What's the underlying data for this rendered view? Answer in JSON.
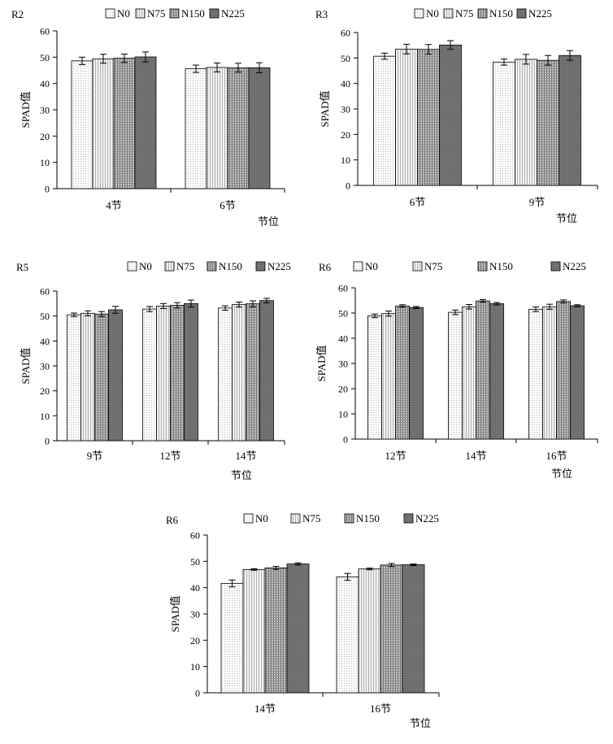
{
  "chart_data": [
    {
      "type": "bar",
      "panel_label": "R2",
      "ylabel": "SPAD值",
      "xlabel": "节位",
      "ylim": [
        0,
        60
      ],
      "yticks": [
        0,
        10,
        20,
        30,
        40,
        50,
        60
      ],
      "categories": [
        "4节",
        "6节"
      ],
      "series": [
        {
          "name": "N0",
          "values": [
            48.6,
            45.6
          ],
          "errors": [
            1.4,
            1.4
          ]
        },
        {
          "name": "N75",
          "values": [
            49.4,
            46.1
          ],
          "errors": [
            1.7,
            1.7
          ]
        },
        {
          "name": "N150",
          "values": [
            49.6,
            46.0
          ],
          "errors": [
            1.6,
            1.7
          ]
        },
        {
          "name": "N225",
          "values": [
            50.1,
            46.0
          ],
          "errors": [
            1.9,
            1.9
          ]
        }
      ],
      "legend": "top"
    },
    {
      "type": "bar",
      "panel_label": "R3",
      "ylabel": "SPAD值",
      "xlabel": "节位",
      "ylim": [
        0,
        60
      ],
      "yticks": [
        0,
        10,
        20,
        30,
        40,
        50,
        60
      ],
      "categories": [
        "6节",
        "9节"
      ],
      "series": [
        {
          "name": "N0",
          "values": [
            50.7,
            48.4
          ],
          "errors": [
            1.2,
            1.2
          ]
        },
        {
          "name": "N75",
          "values": [
            53.5,
            49.5
          ],
          "errors": [
            1.9,
            1.9
          ]
        },
        {
          "name": "N150",
          "values": [
            53.4,
            49.1
          ],
          "errors": [
            1.9,
            1.9
          ]
        },
        {
          "name": "N225",
          "values": [
            55.1,
            51.0
          ],
          "errors": [
            1.7,
            1.9
          ]
        }
      ],
      "legend": "top"
    },
    {
      "type": "bar",
      "panel_label": "R5",
      "ylabel": "SPAD值",
      "xlabel": "节位",
      "ylim": [
        0,
        60
      ],
      "yticks": [
        0,
        10,
        20,
        30,
        40,
        50,
        60
      ],
      "categories": [
        "9节",
        "12节",
        "14节"
      ],
      "series": [
        {
          "name": "N0",
          "values": [
            50.5,
            52.8,
            53.2
          ],
          "errors": [
            0.7,
            1.0,
            0.9
          ]
        },
        {
          "name": "N75",
          "values": [
            51.1,
            54.0,
            54.6
          ],
          "errors": [
            1.0,
            1.0,
            1.0
          ]
        },
        {
          "name": "N150",
          "values": [
            50.8,
            54.3,
            54.9
          ],
          "errors": [
            1.0,
            1.1,
            1.2
          ]
        },
        {
          "name": "N225",
          "values": [
            52.5,
            55.0,
            56.2
          ],
          "errors": [
            1.4,
            1.4,
            0.9
          ]
        }
      ],
      "legend": "top-right"
    },
    {
      "type": "bar",
      "panel_label": "R6",
      "ylabel": "SPAD值",
      "xlabel": "节位",
      "ylim": [
        0,
        60
      ],
      "yticks": [
        0,
        10,
        20,
        30,
        40,
        50,
        60
      ],
      "categories": [
        "12节",
        "14节",
        "16节"
      ],
      "series": [
        {
          "name": "N0",
          "values": [
            48.9,
            50.3,
            51.5
          ],
          "errors": [
            0.7,
            0.9,
            0.9
          ]
        },
        {
          "name": "N75",
          "values": [
            49.8,
            52.5,
            52.5
          ],
          "errors": [
            1.0,
            0.9,
            1.0
          ]
        },
        {
          "name": "N150",
          "values": [
            52.8,
            54.8,
            54.6
          ],
          "errors": [
            0.5,
            0.5,
            0.6
          ]
        },
        {
          "name": "N225",
          "values": [
            52.2,
            53.7,
            52.9
          ],
          "errors": [
            0.4,
            0.5,
            0.4
          ]
        }
      ],
      "legend": "top-right"
    },
    {
      "type": "bar",
      "panel_label": "R6",
      "ylabel": "SPAD值",
      "xlabel": "节位",
      "ylim": [
        0,
        60
      ],
      "yticks": [
        0,
        10,
        20,
        30,
        40,
        50,
        60
      ],
      "categories": [
        "14节",
        "16节"
      ],
      "series": [
        {
          "name": "N0",
          "values": [
            41.6,
            44.1
          ],
          "errors": [
            1.3,
            1.3
          ]
        },
        {
          "name": "N75",
          "values": [
            46.9,
            47.1
          ],
          "errors": [
            0.3,
            0.3
          ]
        },
        {
          "name": "N150",
          "values": [
            47.5,
            48.6
          ],
          "errors": [
            0.6,
            0.6
          ]
        },
        {
          "name": "N225",
          "values": [
            49.0,
            48.7
          ],
          "errors": [
            0.4,
            0.3
          ]
        }
      ],
      "legend": "top"
    }
  ],
  "colors": {
    "N0": "#f6f6f6",
    "N75": "#e4e4e4",
    "N150": "#b4b4b4",
    "N225": "#707070",
    "axis": "#000000"
  }
}
